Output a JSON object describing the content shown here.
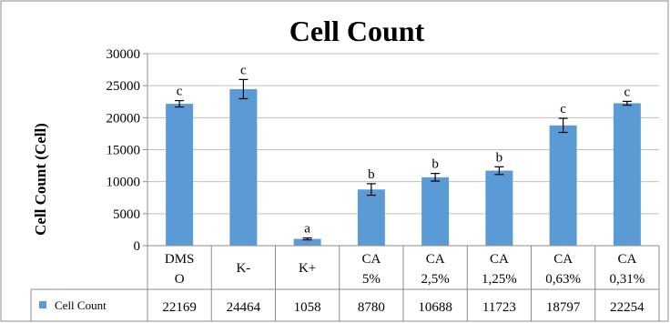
{
  "chart_data": {
    "type": "bar",
    "title": "Cell Count",
    "ylabel": "Cell Count  (Cell)",
    "xlabel": "",
    "ylim": [
      0,
      30000
    ],
    "yticks": [
      0,
      5000,
      10000,
      15000,
      20000,
      25000,
      30000
    ],
    "ytick_labels": [
      "0",
      "5000",
      "10000",
      "15000",
      "20000",
      "25000",
      "30000"
    ],
    "grid": true,
    "categories": [
      [
        "DMS",
        "O"
      ],
      [
        "K-"
      ],
      [
        "K+"
      ],
      [
        "CA",
        "5%"
      ],
      [
        "CA",
        "2,5%"
      ],
      [
        "CA",
        "1,25%"
      ],
      [
        "CA",
        "0,63%"
      ],
      [
        "CA",
        "0,31%"
      ]
    ],
    "series": [
      {
        "name": "Cell Count",
        "color": "#5b9bd5",
        "values": [
          22169,
          24464,
          1058,
          8780,
          10688,
          11723,
          18797,
          22254
        ],
        "value_labels": [
          "22169",
          "24464",
          "1058",
          "8780",
          "10688",
          "11723",
          "18797",
          "22254"
        ],
        "error": [
          500,
          1500,
          150,
          900,
          600,
          600,
          1100,
          300
        ],
        "significance": [
          "c",
          "c",
          "a",
          "b",
          "b",
          "b",
          "c",
          "c"
        ]
      }
    ],
    "data_table": true,
    "legend": "in data table"
  }
}
